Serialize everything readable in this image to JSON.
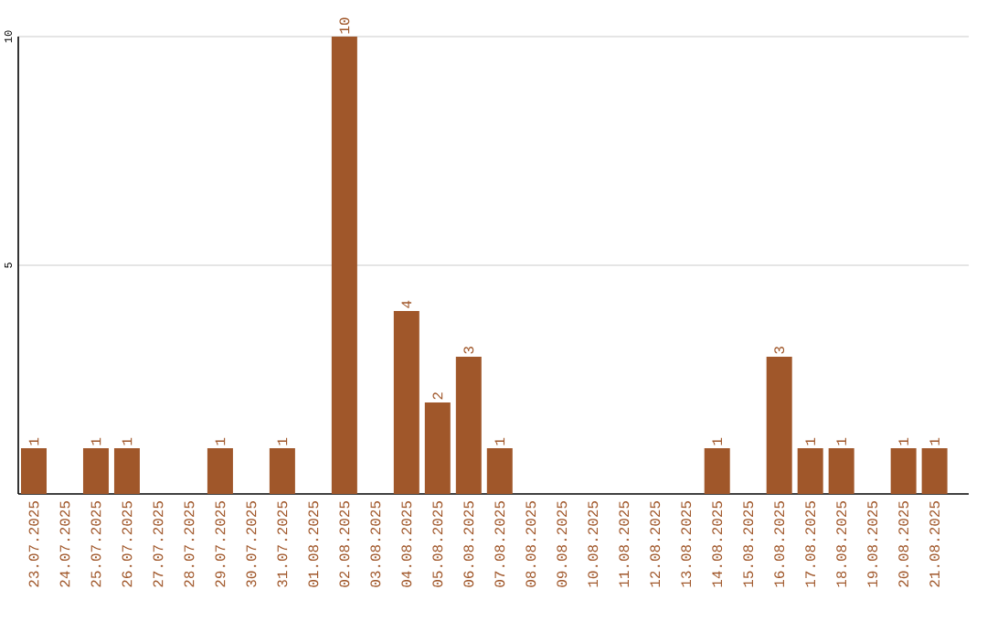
{
  "chart_data": {
    "type": "bar",
    "categories": [
      "23.07.2025",
      "24.07.2025",
      "25.07.2025",
      "26.07.2025",
      "27.07.2025",
      "28.07.2025",
      "29.07.2025",
      "30.07.2025",
      "31.07.2025",
      "01.08.2025",
      "02.08.2025",
      "03.08.2025",
      "04.08.2025",
      "05.08.2025",
      "06.08.2025",
      "07.08.2025",
      "08.08.2025",
      "09.08.2025",
      "10.08.2025",
      "11.08.2025",
      "12.08.2025",
      "13.08.2025",
      "14.08.2025",
      "15.08.2025",
      "16.08.2025",
      "17.08.2025",
      "18.08.2025",
      "19.08.2025",
      "20.08.2025",
      "21.08.2025"
    ],
    "values": [
      1,
      0,
      1,
      1,
      0,
      0,
      1,
      0,
      1,
      0,
      10,
      0,
      4,
      2,
      3,
      1,
      0,
      0,
      0,
      0,
      0,
      0,
      1,
      0,
      3,
      1,
      1,
      0,
      1,
      1
    ],
    "value_labels": [
      "1",
      null,
      "1",
      "1",
      null,
      null,
      "1",
      null,
      "1",
      null,
      "10",
      null,
      "4",
      "2",
      "3",
      "1",
      null,
      null,
      null,
      null,
      null,
      null,
      "1",
      null,
      "3",
      "1",
      "1",
      null,
      "1",
      "1"
    ],
    "color": "#a0572a",
    "ylim": [
      0,
      10
    ],
    "yticks": [
      5,
      10
    ],
    "grid": "y"
  }
}
